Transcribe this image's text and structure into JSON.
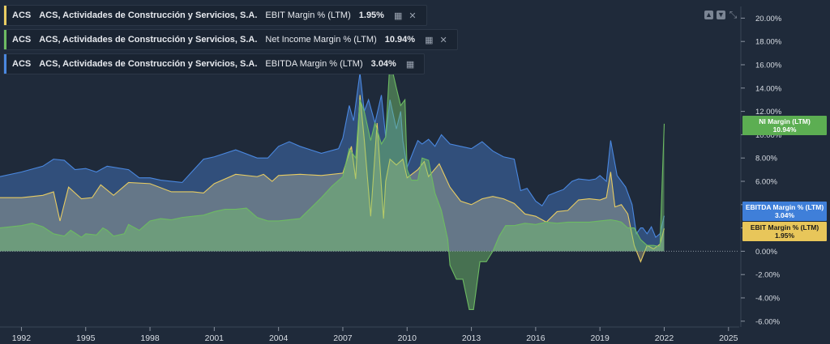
{
  "colors": {
    "ebit": "#e8cc62",
    "ni": "#6dbb62",
    "ebitda": "#4a88e0",
    "background": "#1f2a3a",
    "text": "#e6e9ee"
  },
  "legend": [
    {
      "ticker": "ACS",
      "company": "ACS, Actividades de Construcción y Servicios, S.A.",
      "metric": "EBIT Margin % (LTM)",
      "value": "1.95%",
      "icon": "chart-settings-icon",
      "close": "✕"
    },
    {
      "ticker": "ACS",
      "company": "ACS, Actividades de Construcción y Servicios, S.A.",
      "metric": "Net Income Margin % (LTM)",
      "value": "10.94%",
      "icon": "chart-settings-icon",
      "close": "✕"
    },
    {
      "ticker": "ACS",
      "company": "ACS, Actividades de Construcción y Servicios, S.A.",
      "metric": "EBITDA Margin % (LTM)",
      "value": "3.04%",
      "icon": "chart-settings-icon"
    }
  ],
  "badges": {
    "ni": {
      "label": "NI Margin (LTM)",
      "value": "10.94%"
    },
    "ebitda": {
      "label": "EBITDA Margin % (LTM)",
      "value": "3.04%"
    },
    "ebit": {
      "label": "EBIT Margin % (LTM)",
      "value": "1.95%"
    }
  },
  "chart_data": {
    "type": "area",
    "x_ticks": [
      1992,
      1995,
      1998,
      2001,
      2004,
      2007,
      2010,
      2013,
      2016,
      2019,
      2022,
      2025
    ],
    "xlim": [
      1991,
      2025.5
    ],
    "ylim": [
      -6.5,
      21
    ],
    "y_ticks": [
      -6,
      -4,
      -2,
      0,
      2,
      4,
      6,
      8,
      10,
      12,
      14,
      16,
      18,
      20
    ],
    "y_tick_labels": [
      "-6.00%",
      "-4.00%",
      "-2.00%",
      "0.00%",
      "2.00%",
      "4.00%",
      "6.00%",
      "8.00%",
      "10.00%",
      "12.00%",
      "14.00%",
      "16.00%",
      "18.00%",
      "20.00%"
    ],
    "legend_placement": "top-left",
    "series": [
      {
        "name": "EBITDA Margin % (LTM)",
        "key": "ebitda",
        "points": [
          [
            1991.0,
            6.4
          ],
          [
            1992.0,
            6.8
          ],
          [
            1993.0,
            7.3
          ],
          [
            1993.5,
            7.9
          ],
          [
            1994.0,
            7.8
          ],
          [
            1994.5,
            7.0
          ],
          [
            1995.0,
            7.1
          ],
          [
            1995.5,
            6.8
          ],
          [
            1996.0,
            7.3
          ],
          [
            1997.0,
            7.0
          ],
          [
            1997.5,
            6.3
          ],
          [
            1998.0,
            6.3
          ],
          [
            1998.5,
            6.1
          ],
          [
            1999.5,
            5.9
          ],
          [
            2000.0,
            6.9
          ],
          [
            2000.5,
            7.9
          ],
          [
            2001.0,
            8.1
          ],
          [
            2002.0,
            8.7
          ],
          [
            2003.0,
            8.0
          ],
          [
            2003.5,
            8.0
          ],
          [
            2004.0,
            9.0
          ],
          [
            2004.5,
            9.4
          ],
          [
            2005.0,
            9.0
          ],
          [
            2005.5,
            8.7
          ],
          [
            2006.0,
            8.4
          ],
          [
            2006.8,
            8.8
          ],
          [
            2007.0,
            9.7
          ],
          [
            2007.3,
            12.5
          ],
          [
            2007.5,
            11.2
          ],
          [
            2007.8,
            15.3
          ],
          [
            2008.0,
            12.0
          ],
          [
            2008.2,
            13.0
          ],
          [
            2008.5,
            11.0
          ],
          [
            2008.8,
            13.4
          ],
          [
            2009.0,
            9.8
          ],
          [
            2009.2,
            13.0
          ],
          [
            2009.5,
            10.5
          ],
          [
            2009.7,
            12.0
          ],
          [
            2009.8,
            9.5
          ],
          [
            2010.0,
            7.2
          ],
          [
            2010.3,
            8.6
          ],
          [
            2010.5,
            9.5
          ],
          [
            2010.7,
            9.2
          ],
          [
            2011.0,
            9.6
          ],
          [
            2011.3,
            9.0
          ],
          [
            2011.6,
            10.0
          ],
          [
            2012.0,
            9.2
          ],
          [
            2012.5,
            9.0
          ],
          [
            2013.0,
            8.8
          ],
          [
            2013.5,
            9.4
          ],
          [
            2014.0,
            8.6
          ],
          [
            2014.5,
            8.1
          ],
          [
            2015.0,
            7.9
          ],
          [
            2015.3,
            5.2
          ],
          [
            2015.6,
            5.4
          ],
          [
            2016.0,
            4.3
          ],
          [
            2016.3,
            3.9
          ],
          [
            2016.6,
            4.8
          ],
          [
            2017.0,
            5.1
          ],
          [
            2017.3,
            5.3
          ],
          [
            2017.7,
            6.0
          ],
          [
            2018.0,
            6.2
          ],
          [
            2018.5,
            6.1
          ],
          [
            2018.8,
            6.2
          ],
          [
            2019.0,
            6.5
          ],
          [
            2019.3,
            6.0
          ],
          [
            2019.5,
            9.5
          ],
          [
            2019.8,
            6.5
          ],
          [
            2020.0,
            6.0
          ],
          [
            2020.2,
            5.5
          ],
          [
            2020.5,
            4.0
          ],
          [
            2020.7,
            1.5
          ],
          [
            2020.9,
            2.0
          ],
          [
            2021.0,
            2.0
          ],
          [
            2021.2,
            1.5
          ],
          [
            2021.4,
            2.1
          ],
          [
            2021.6,
            1.2
          ],
          [
            2021.8,
            1.5
          ],
          [
            2022.0,
            3.04
          ]
        ]
      },
      {
        "name": "EBIT Margin % (LTM)",
        "key": "ebit",
        "points": [
          [
            1991.0,
            4.6
          ],
          [
            1992.0,
            4.6
          ],
          [
            1993.0,
            4.8
          ],
          [
            1993.5,
            5.1
          ],
          [
            1993.8,
            2.6
          ],
          [
            1994.2,
            5.5
          ],
          [
            1994.8,
            4.5
          ],
          [
            1995.3,
            4.6
          ],
          [
            1995.7,
            5.7
          ],
          [
            1996.3,
            4.8
          ],
          [
            1997.0,
            5.9
          ],
          [
            1998.0,
            5.8
          ],
          [
            1999.0,
            5.1
          ],
          [
            2000.0,
            5.1
          ],
          [
            2000.5,
            5.0
          ],
          [
            2001.0,
            5.8
          ],
          [
            2002.0,
            6.6
          ],
          [
            2003.0,
            6.4
          ],
          [
            2003.3,
            6.6
          ],
          [
            2003.7,
            6.0
          ],
          [
            2004.0,
            6.5
          ],
          [
            2005.0,
            6.6
          ],
          [
            2006.0,
            6.5
          ],
          [
            2007.0,
            6.7
          ],
          [
            2007.4,
            9.0
          ],
          [
            2007.6,
            6.2
          ],
          [
            2007.8,
            13.4
          ],
          [
            2008.0,
            9.6
          ],
          [
            2008.3,
            3.0
          ],
          [
            2008.6,
            11.0
          ],
          [
            2008.9,
            2.8
          ],
          [
            2009.0,
            6.0
          ],
          [
            2009.2,
            7.9
          ],
          [
            2009.5,
            7.4
          ],
          [
            2009.8,
            7.9
          ],
          [
            2010.0,
            6.3
          ],
          [
            2010.5,
            7.0
          ],
          [
            2010.8,
            7.7
          ],
          [
            2011.0,
            6.4
          ],
          [
            2011.5,
            7.5
          ],
          [
            2012.0,
            5.5
          ],
          [
            2012.5,
            4.3
          ],
          [
            2013.0,
            4.0
          ],
          [
            2013.5,
            4.5
          ],
          [
            2014.0,
            4.7
          ],
          [
            2014.5,
            4.5
          ],
          [
            2015.0,
            4.1
          ],
          [
            2015.5,
            3.2
          ],
          [
            2016.0,
            3.0
          ],
          [
            2016.5,
            2.5
          ],
          [
            2017.0,
            3.4
          ],
          [
            2017.5,
            3.5
          ],
          [
            2018.0,
            4.4
          ],
          [
            2018.5,
            4.5
          ],
          [
            2019.0,
            4.4
          ],
          [
            2019.3,
            4.6
          ],
          [
            2019.5,
            6.8
          ],
          [
            2019.7,
            3.8
          ],
          [
            2020.0,
            4.0
          ],
          [
            2020.3,
            3.2
          ],
          [
            2020.6,
            0.5
          ],
          [
            2020.9,
            -0.9
          ],
          [
            2021.2,
            0.5
          ],
          [
            2021.5,
            0.2
          ],
          [
            2021.8,
            0.6
          ],
          [
            2022.0,
            1.95
          ]
        ]
      },
      {
        "name": "Net Income Margin % (LTM)",
        "key": "ni",
        "points": [
          [
            1991.0,
            2.0
          ],
          [
            1992.0,
            2.2
          ],
          [
            1992.5,
            2.4
          ],
          [
            1993.0,
            2.1
          ],
          [
            1993.5,
            1.5
          ],
          [
            1994.0,
            1.3
          ],
          [
            1994.3,
            1.8
          ],
          [
            1994.8,
            1.2
          ],
          [
            1995.0,
            1.5
          ],
          [
            1995.5,
            1.4
          ],
          [
            1995.8,
            2.0
          ],
          [
            1996.0,
            1.8
          ],
          [
            1996.3,
            1.3
          ],
          [
            1996.8,
            1.5
          ],
          [
            1997.0,
            2.3
          ],
          [
            1997.5,
            1.8
          ],
          [
            1998.0,
            2.6
          ],
          [
            1998.5,
            2.8
          ],
          [
            1999.0,
            2.7
          ],
          [
            1999.5,
            2.9
          ],
          [
            2000.0,
            3.0
          ],
          [
            2000.5,
            3.1
          ],
          [
            2001.0,
            3.4
          ],
          [
            2001.5,
            3.6
          ],
          [
            2002.0,
            3.6
          ],
          [
            2002.5,
            3.7
          ],
          [
            2003.0,
            2.9
          ],
          [
            2003.5,
            2.6
          ],
          [
            2004.0,
            2.6
          ],
          [
            2005.0,
            2.8
          ],
          [
            2005.5,
            3.7
          ],
          [
            2006.0,
            4.6
          ],
          [
            2006.5,
            5.6
          ],
          [
            2007.0,
            6.4
          ],
          [
            2007.3,
            8.8
          ],
          [
            2007.6,
            8.0
          ],
          [
            2007.8,
            13.0
          ],
          [
            2008.0,
            12.0
          ],
          [
            2008.3,
            9.5
          ],
          [
            2008.5,
            11.0
          ],
          [
            2008.8,
            9.2
          ],
          [
            2009.0,
            9.8
          ],
          [
            2009.2,
            16.4
          ],
          [
            2009.5,
            14.0
          ],
          [
            2009.7,
            12.5
          ],
          [
            2009.9,
            13.0
          ],
          [
            2010.0,
            7.0
          ],
          [
            2010.2,
            6.1
          ],
          [
            2010.5,
            6.1
          ],
          [
            2010.7,
            8.0
          ],
          [
            2011.0,
            7.8
          ],
          [
            2011.3,
            5.0
          ],
          [
            2011.6,
            3.5
          ],
          [
            2011.9,
            1.0
          ],
          [
            2012.0,
            -1.2
          ],
          [
            2012.3,
            -2.4
          ],
          [
            2012.6,
            -2.4
          ],
          [
            2012.9,
            -5.0
          ],
          [
            2013.1,
            -5.0
          ],
          [
            2013.4,
            -0.9
          ],
          [
            2013.7,
            -0.9
          ],
          [
            2014.0,
            0.0
          ],
          [
            2014.3,
            1.3
          ],
          [
            2014.6,
            2.2
          ],
          [
            2015.0,
            2.2
          ],
          [
            2015.5,
            2.4
          ],
          [
            2016.0,
            2.3
          ],
          [
            2016.5,
            2.5
          ],
          [
            2017.0,
            2.4
          ],
          [
            2017.5,
            2.5
          ],
          [
            2018.0,
            2.5
          ],
          [
            2018.5,
            2.5
          ],
          [
            2019.0,
            2.6
          ],
          [
            2019.5,
            2.7
          ],
          [
            2019.8,
            2.6
          ],
          [
            2020.0,
            2.5
          ],
          [
            2020.3,
            2.0
          ],
          [
            2020.6,
            2.0
          ],
          [
            2020.9,
            1.0
          ],
          [
            2021.2,
            0.5
          ],
          [
            2021.5,
            0.5
          ],
          [
            2021.8,
            0.4
          ],
          [
            2022.0,
            10.94
          ]
        ]
      }
    ]
  }
}
